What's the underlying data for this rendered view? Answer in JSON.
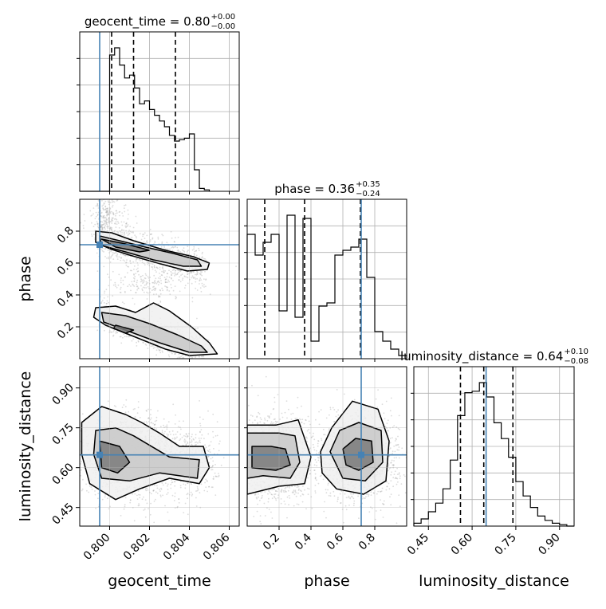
{
  "chart_data": {
    "type": "corner",
    "parameters": [
      "geocent_time",
      "phase",
      "luminosity_distance"
    ],
    "truths": {
      "geocent_time": 0.7995,
      "phase": 0.715,
      "luminosity_distance": 0.648
    },
    "histograms": [
      {
        "name": "geocent_time",
        "title": "geocent_time = 0.80",
        "title_sup": "+0.00",
        "title_sub": "−0.00",
        "range": [
          0.7985,
          0.8065
        ],
        "bins": [
          0.7985,
          0.8,
          0.80025,
          0.8005,
          0.80075,
          0.801,
          0.80125,
          0.8015,
          0.80175,
          0.802,
          0.80225,
          0.8025,
          0.80275,
          0.803,
          0.80325,
          0.8035,
          0.80375,
          0.804,
          0.80425,
          0.8045,
          0.80475,
          0.805
        ],
        "counts": [
          0,
          0.95,
          1.0,
          0.88,
          0.79,
          0.81,
          0.72,
          0.61,
          0.63,
          0.57,
          0.53,
          0.49,
          0.45,
          0.39,
          0.35,
          0.36,
          0.37,
          0.4,
          0.15,
          0.02,
          0.01
        ],
        "quantiles": [
          0.8001,
          0.8012,
          0.8033
        ]
      },
      {
        "name": "phase",
        "title": "phase = 0.36",
        "title_sup": "+0.35",
        "title_sub": "−0.24",
        "range": [
          0.0,
          1.0
        ],
        "bins": [
          0.0,
          0.05,
          0.1,
          0.15,
          0.2,
          0.25,
          0.3,
          0.35,
          0.4,
          0.45,
          0.5,
          0.55,
          0.6,
          0.65,
          0.7,
          0.75,
          0.8,
          0.85,
          0.9,
          0.95,
          1.0
        ],
        "counts": [
          0.78,
          0.65,
          0.73,
          0.78,
          0.3,
          0.9,
          0.26,
          0.88,
          0.11,
          0.33,
          0.35,
          0.65,
          0.68,
          0.7,
          0.75,
          0.51,
          0.17,
          0.11,
          0.06,
          0.02
        ],
        "quantiles": [
          0.11,
          0.36,
          0.71
        ]
      },
      {
        "name": "luminosity_distance",
        "title": "luminosity_distance = 0.64",
        "title_sup": "+0.10",
        "title_sub": "−0.08",
        "range": [
          0.4,
          0.95
        ],
        "bins": [
          0.4,
          0.425,
          0.45,
          0.475,
          0.5,
          0.525,
          0.55,
          0.575,
          0.6,
          0.625,
          0.65,
          0.675,
          0.7,
          0.725,
          0.75,
          0.775,
          0.8,
          0.825,
          0.85,
          0.875,
          0.9,
          0.925,
          0.95
        ],
        "counts": [
          0.02,
          0.05,
          0.1,
          0.16,
          0.26,
          0.46,
          0.77,
          0.93,
          0.94,
          1.0,
          0.9,
          0.72,
          0.61,
          0.48,
          0.31,
          0.21,
          0.13,
          0.07,
          0.04,
          0.02,
          0.01,
          0.0
        ],
        "quantiles": [
          0.56,
          0.64,
          0.74
        ]
      }
    ],
    "panels": [
      {
        "x": "geocent_time",
        "y": "phase",
        "clusters": [
          {
            "kind": "line",
            "x0": 0.7995,
            "y0": 0.76,
            "x1": 0.8047,
            "y1": 0.56,
            "width": 0.06,
            "n": 900
          },
          {
            "kind": "line",
            "x0": 0.7995,
            "y0": 0.28,
            "x1": 0.8048,
            "y1": 0.04,
            "width": 0.05,
            "n": 900
          },
          {
            "kind": "blob",
            "cx": 0.802,
            "cy": 0.47,
            "sx": 0.0012,
            "sy": 0.05,
            "n": 200
          },
          {
            "kind": "blob",
            "cx": 0.7998,
            "cy": 0.88,
            "sx": 0.0005,
            "sy": 0.07,
            "n": 250
          }
        ],
        "contours": [
          [
            [
              0.7993,
              0.8
            ],
            [
              0.8001,
              0.79
            ],
            [
              0.8012,
              0.74
            ],
            [
              0.8028,
              0.68
            ],
            [
              0.8042,
              0.64
            ],
            [
              0.805,
              0.6
            ],
            [
              0.8049,
              0.56
            ],
            [
              0.8039,
              0.55
            ],
            [
              0.8024,
              0.6
            ],
            [
              0.801,
              0.65
            ],
            [
              0.8,
              0.69
            ],
            [
              0.7993,
              0.73
            ]
          ],
          [
            [
              0.7995,
              0.77
            ],
            [
              0.8005,
              0.74
            ],
            [
              0.8018,
              0.7
            ],
            [
              0.8032,
              0.66
            ],
            [
              0.8044,
              0.62
            ],
            [
              0.8046,
              0.58
            ],
            [
              0.8037,
              0.58
            ],
            [
              0.8022,
              0.62
            ],
            [
              0.8008,
              0.67
            ],
            [
              0.7996,
              0.71
            ]
          ],
          [
            [
              0.7996,
              0.75
            ],
            [
              0.8008,
              0.72
            ],
            [
              0.802,
              0.68
            ],
            [
              0.8015,
              0.67
            ],
            [
              0.8003,
              0.7
            ]
          ],
          [
            [
              0.7993,
              0.32
            ],
            [
              0.8003,
              0.33
            ],
            [
              0.8013,
              0.29
            ],
            [
              0.8022,
              0.35
            ],
            [
              0.803,
              0.3
            ],
            [
              0.8041,
              0.2
            ],
            [
              0.805,
              0.1
            ],
            [
              0.8054,
              0.03
            ],
            [
              0.804,
              0.02
            ],
            [
              0.8028,
              0.06
            ],
            [
              0.8012,
              0.14
            ],
            [
              0.7998,
              0.21
            ],
            [
              0.7992,
              0.26
            ]
          ],
          [
            [
              0.7996,
              0.29
            ],
            [
              0.8008,
              0.27
            ],
            [
              0.802,
              0.22
            ],
            [
              0.8034,
              0.15
            ],
            [
              0.8046,
              0.08
            ],
            [
              0.8049,
              0.04
            ],
            [
              0.804,
              0.04
            ],
            [
              0.8025,
              0.1
            ],
            [
              0.801,
              0.17
            ],
            [
              0.7997,
              0.23
            ]
          ],
          [
            [
              0.8003,
              0.21
            ],
            [
              0.8012,
              0.18
            ],
            [
              0.8008,
              0.16
            ],
            [
              0.8002,
              0.19
            ]
          ]
        ],
        "ylim": [
          0.0,
          1.0
        ]
      },
      {
        "x": "geocent_time",
        "y": "luminosity_distance",
        "clusters": [
          {
            "kind": "blob",
            "cx": 0.801,
            "cy": 0.64,
            "sx": 0.0012,
            "sy": 0.07,
            "n": 1800
          },
          {
            "kind": "blob",
            "cx": 0.804,
            "cy": 0.62,
            "sx": 0.0007,
            "sy": 0.07,
            "n": 500
          }
        ],
        "contours": [
          [
            [
              0.7986,
              0.77
            ],
            [
              0.7996,
              0.83
            ],
            [
              0.8008,
              0.8
            ],
            [
              0.8016,
              0.77
            ],
            [
              0.8025,
              0.73
            ],
            [
              0.8035,
              0.68
            ],
            [
              0.8047,
              0.68
            ],
            [
              0.805,
              0.6
            ],
            [
              0.8045,
              0.54
            ],
            [
              0.803,
              0.56
            ],
            [
              0.8015,
              0.52
            ],
            [
              0.8003,
              0.48
            ],
            [
              0.799,
              0.54
            ],
            [
              0.7986,
              0.65
            ]
          ],
          [
            [
              0.7993,
              0.74
            ],
            [
              0.8003,
              0.75
            ],
            [
              0.8012,
              0.72
            ],
            [
              0.803,
              0.64
            ],
            [
              0.8045,
              0.63
            ],
            [
              0.8044,
              0.56
            ],
            [
              0.8025,
              0.58
            ],
            [
              0.801,
              0.55
            ],
            [
              0.7996,
              0.56
            ],
            [
              0.7992,
              0.65
            ]
          ],
          [
            [
              0.7995,
              0.7
            ],
            [
              0.8005,
              0.68
            ],
            [
              0.801,
              0.62
            ],
            [
              0.8004,
              0.58
            ],
            [
              0.7996,
              0.6
            ]
          ]
        ],
        "ylim": [
          0.38,
          0.98
        ]
      },
      {
        "x": "phase",
        "y": "luminosity_distance",
        "clusters": [
          {
            "kind": "blob",
            "cx": 0.17,
            "cy": 0.64,
            "sx": 0.12,
            "sy": 0.08,
            "n": 1500
          },
          {
            "kind": "blob",
            "cx": 0.71,
            "cy": 0.64,
            "sx": 0.12,
            "sy": 0.08,
            "n": 1500
          }
        ],
        "contours": [
          [
            [
              0.0,
              0.76
            ],
            [
              0.18,
              0.76
            ],
            [
              0.32,
              0.78
            ],
            [
              0.4,
              0.64
            ],
            [
              0.36,
              0.54
            ],
            [
              0.2,
              0.53
            ],
            [
              0.0,
              0.5
            ]
          ],
          [
            [
              0.0,
              0.73
            ],
            [
              0.2,
              0.73
            ],
            [
              0.3,
              0.72
            ],
            [
              0.33,
              0.62
            ],
            [
              0.27,
              0.56
            ],
            [
              0.1,
              0.57
            ],
            [
              0.0,
              0.56
            ]
          ],
          [
            [
              0.03,
              0.68
            ],
            [
              0.15,
              0.68
            ],
            [
              0.24,
              0.67
            ],
            [
              0.27,
              0.61
            ],
            [
              0.18,
              0.59
            ],
            [
              0.03,
              0.6
            ]
          ],
          [
            [
              0.46,
              0.66
            ],
            [
              0.53,
              0.75
            ],
            [
              0.66,
              0.85
            ],
            [
              0.82,
              0.82
            ],
            [
              0.89,
              0.7
            ],
            [
              0.87,
              0.55
            ],
            [
              0.73,
              0.5
            ],
            [
              0.56,
              0.52
            ],
            [
              0.47,
              0.58
            ]
          ],
          [
            [
              0.52,
              0.66
            ],
            [
              0.58,
              0.74
            ],
            [
              0.7,
              0.77
            ],
            [
              0.84,
              0.74
            ],
            [
              0.85,
              0.62
            ],
            [
              0.74,
              0.55
            ],
            [
              0.6,
              0.56
            ]
          ],
          [
            [
              0.6,
              0.67
            ],
            [
              0.68,
              0.71
            ],
            [
              0.78,
              0.7
            ],
            [
              0.79,
              0.62
            ],
            [
              0.7,
              0.59
            ],
            [
              0.62,
              0.61
            ]
          ]
        ],
        "ylim": [
          0.38,
          0.98
        ]
      }
    ],
    "axes": {
      "geocent_time": {
        "label": "geocent_time",
        "ticks": [
          0.8,
          0.802,
          0.804,
          0.806
        ],
        "tick_labels": [
          "0.800",
          "0.802",
          "0.804",
          "0.806"
        ]
      },
      "phase": {
        "label": "phase",
        "ticks": [
          0.2,
          0.4,
          0.6,
          0.8
        ],
        "tick_labels": [
          "0.2",
          "0.4",
          "0.6",
          "0.8"
        ]
      },
      "luminosity_distance": {
        "label": "luminosity_distance",
        "ticks": [
          0.45,
          0.6,
          0.75,
          0.9
        ],
        "tick_labels": [
          "0.45",
          "0.60",
          "0.75",
          "0.90"
        ]
      }
    },
    "grid": true,
    "colors": {
      "truth": "#4682b4",
      "hist": "#000000",
      "contour": "#000000",
      "quantile": "#000000",
      "points": "#9a9a9a"
    }
  }
}
